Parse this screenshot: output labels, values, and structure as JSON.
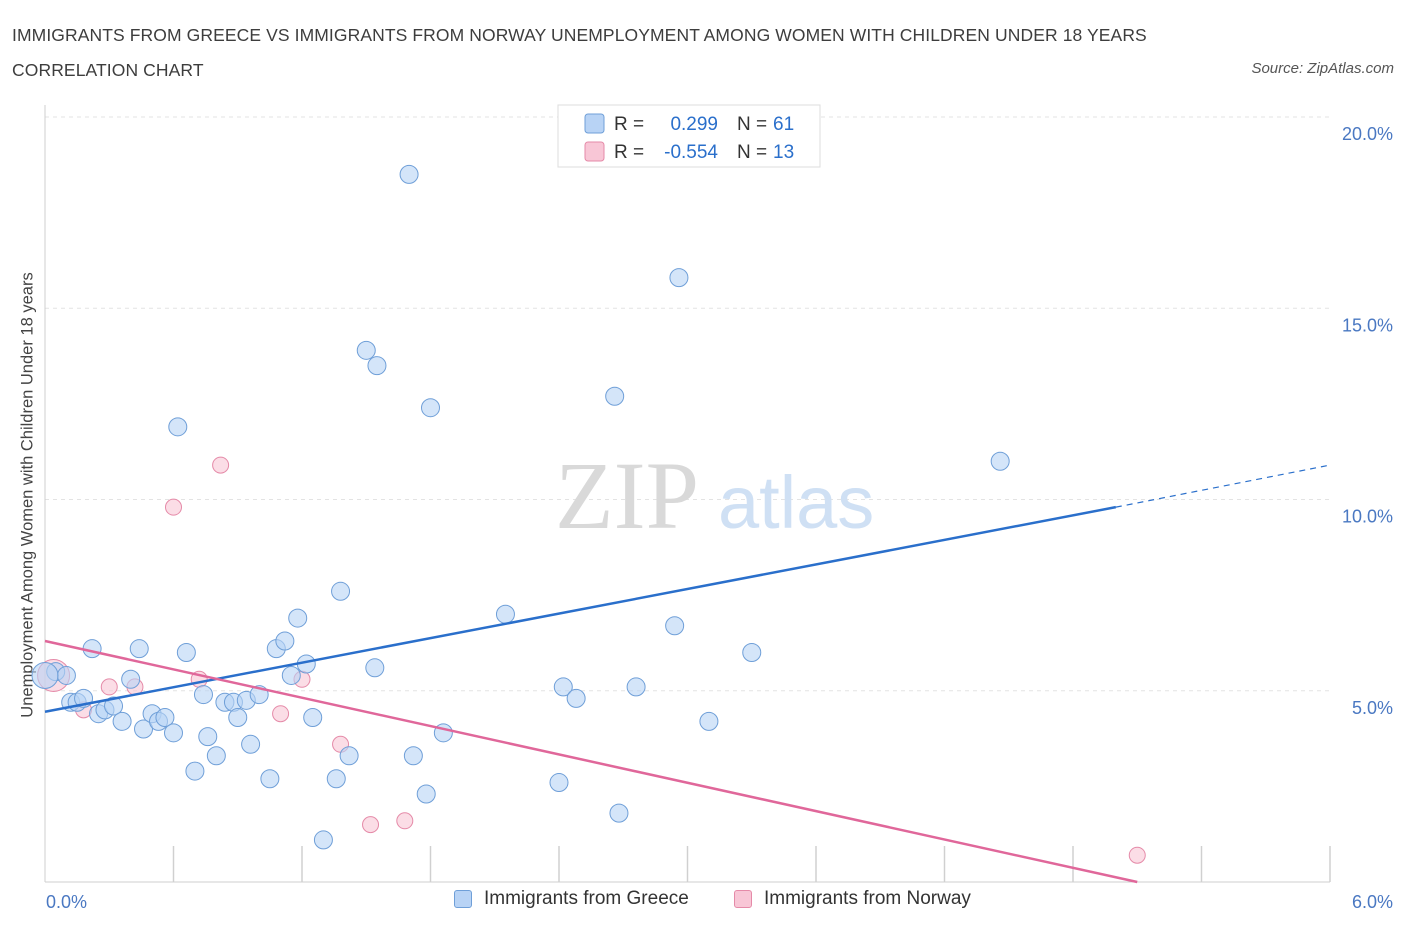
{
  "title": "IMMIGRANTS FROM GREECE VS IMMIGRANTS FROM NORWAY UNEMPLOYMENT AMONG WOMEN WITH CHILDREN UNDER 18 YEARS CORRELATION CHART",
  "source": "Source: ZipAtlas.com",
  "watermark": {
    "zip": "ZIP",
    "atlas": "atlas"
  },
  "colors": {
    "greece_fill": "#b8d3f5",
    "greece_stroke": "#6f9fd8",
    "greece_line": "#2a6fcb",
    "norway_fill": "#f8c6d6",
    "norway_stroke": "#e58aa8",
    "norway_line": "#e0679a",
    "tick_text": "#4a78c2",
    "grid": "#e3e3e3"
  },
  "legend": {
    "r_label": "R =",
    "n_label": "N =",
    "rows": [
      {
        "r": "0.299",
        "n": "61"
      },
      {
        "r": "-0.554",
        "n": "13"
      }
    ]
  },
  "chart_data": {
    "type": "scatter",
    "title": "IMMIGRANTS FROM GREECE VS IMMIGRANTS FROM NORWAY UNEMPLOYMENT AMONG WOMEN WITH CHILDREN UNDER 18 YEARS CORRELATION CHART",
    "xlabel": "",
    "ylabel": "Unemployment Among Women with Children Under 18 years",
    "xlim": [
      0,
      6
    ],
    "ylim": [
      0,
      20
    ],
    "x_tick_labels": [
      "0.0%",
      "6.0%"
    ],
    "y_ticks": [
      5,
      10,
      15,
      20
    ],
    "y_tick_labels": [
      "5.0%",
      "10.0%",
      "15.0%",
      "20.0%"
    ],
    "grid": "horizontal dashed",
    "legend_position": "top-center",
    "series": [
      {
        "name": "Immigrants from Greece",
        "r": 0.299,
        "n": 61,
        "trend": {
          "x0": 0,
          "y0": 4.45,
          "x1": 5.0,
          "y1": 9.8,
          "dashed_to_x": 6.0,
          "dashed_to_y": 10.9
        },
        "points": [
          [
            0.05,
            5.5
          ],
          [
            0.1,
            5.4
          ],
          [
            0.12,
            4.7
          ],
          [
            0.15,
            4.7
          ],
          [
            0.18,
            4.8
          ],
          [
            0.22,
            6.1
          ],
          [
            0.25,
            4.4
          ],
          [
            0.28,
            4.5
          ],
          [
            0.32,
            4.6
          ],
          [
            0.36,
            4.2
          ],
          [
            0.4,
            5.3
          ],
          [
            0.44,
            6.1
          ],
          [
            0.46,
            4.0
          ],
          [
            0.5,
            4.4
          ],
          [
            0.53,
            4.2
          ],
          [
            0.56,
            4.3
          ],
          [
            0.6,
            3.9
          ],
          [
            0.62,
            11.9
          ],
          [
            0.66,
            6.0
          ],
          [
            0.7,
            2.9
          ],
          [
            0.74,
            4.9
          ],
          [
            0.76,
            3.8
          ],
          [
            0.8,
            3.3
          ],
          [
            0.84,
            4.7
          ],
          [
            0.88,
            4.7
          ],
          [
            0.9,
            4.3
          ],
          [
            0.94,
            4.75
          ],
          [
            0.96,
            3.6
          ],
          [
            1.0,
            4.9
          ],
          [
            1.05,
            2.7
          ],
          [
            1.08,
            6.1
          ],
          [
            1.12,
            6.3
          ],
          [
            1.15,
            5.4
          ],
          [
            1.18,
            6.9
          ],
          [
            1.22,
            5.7
          ],
          [
            1.25,
            4.3
          ],
          [
            1.3,
            1.1
          ],
          [
            1.36,
            2.7
          ],
          [
            1.38,
            7.6
          ],
          [
            1.42,
            3.3
          ],
          [
            1.5,
            13.9
          ],
          [
            1.54,
            5.6
          ],
          [
            1.55,
            13.5
          ],
          [
            1.7,
            18.5
          ],
          [
            1.72,
            3.3
          ],
          [
            1.78,
            2.3
          ],
          [
            1.8,
            12.4
          ],
          [
            1.86,
            3.9
          ],
          [
            2.15,
            7.0
          ],
          [
            2.4,
            2.6
          ],
          [
            2.42,
            5.1
          ],
          [
            2.48,
            4.8
          ],
          [
            2.66,
            12.7
          ],
          [
            2.68,
            1.8
          ],
          [
            2.76,
            5.1
          ],
          [
            2.94,
            6.7
          ],
          [
            2.96,
            15.8
          ],
          [
            3.1,
            4.2
          ],
          [
            3.3,
            6.0
          ],
          [
            4.46,
            11.0
          ],
          [
            0.0,
            5.4
          ]
        ]
      },
      {
        "name": "Immigrants from Norway",
        "r": -0.554,
        "n": 13,
        "trend": {
          "x0": 0,
          "y0": 6.3,
          "x1": 5.1,
          "y1": 0.0
        },
        "points": [
          [
            0.04,
            5.4
          ],
          [
            0.18,
            4.5
          ],
          [
            0.3,
            5.1
          ],
          [
            0.42,
            5.1
          ],
          [
            0.6,
            9.8
          ],
          [
            0.72,
            5.3
          ],
          [
            0.82,
            10.9
          ],
          [
            1.1,
            4.4
          ],
          [
            1.2,
            5.3
          ],
          [
            1.38,
            3.6
          ],
          [
            1.52,
            1.5
          ],
          [
            1.68,
            1.6
          ],
          [
            5.1,
            0.7
          ]
        ]
      }
    ]
  }
}
